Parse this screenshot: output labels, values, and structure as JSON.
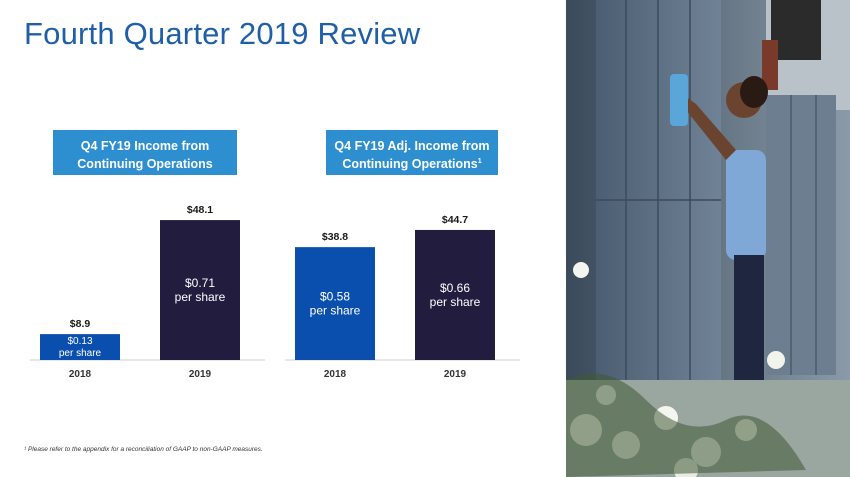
{
  "slide": {
    "title": "Fourth Quarter 2019 Review",
    "footnote": "¹ Please refer to the appendix for a reconciliation of GAAP to non-GAAP measures."
  },
  "charts": [
    {
      "header_line1": "Q4 FY19 Income from",
      "header_line2": "Continuing Operations",
      "header_sup": ""
    },
    {
      "header_line1": "Q4 FY19 Adj. Income from",
      "header_line2": "Continuing Operations",
      "header_sup": "1"
    }
  ],
  "colors": {
    "title": "#1f5fa8",
    "header_bg": "#2d8fd0",
    "bar_2018": "#0b4fae",
    "bar_2019": "#221c3e"
  },
  "photo": {
    "icon": "worker-cleaning-lockers-photo"
  },
  "chart_data": [
    {
      "type": "bar",
      "title": "Q4 FY19 Income from Continuing Operations",
      "categories": [
        "2018",
        "2019"
      ],
      "values": [
        8.9,
        48.1
      ],
      "value_labels": [
        "$8.9",
        "$48.1"
      ],
      "inner_labels": [
        [
          "$0.13",
          "per share"
        ],
        [
          "$0.71",
          "per share"
        ]
      ],
      "ylim": [
        0,
        55
      ],
      "grid": false,
      "legend": "none"
    },
    {
      "type": "bar",
      "title": "Q4 FY19 Adj. Income from Continuing Operations",
      "categories": [
        "2018",
        "2019"
      ],
      "values": [
        38.8,
        44.7
      ],
      "value_labels": [
        "$38.8",
        "$44.7"
      ],
      "inner_labels": [
        [
          "$0.58",
          "per share"
        ],
        [
          "$0.66",
          "per share"
        ]
      ],
      "ylim": [
        0,
        55
      ],
      "grid": false,
      "legend": "none"
    }
  ]
}
